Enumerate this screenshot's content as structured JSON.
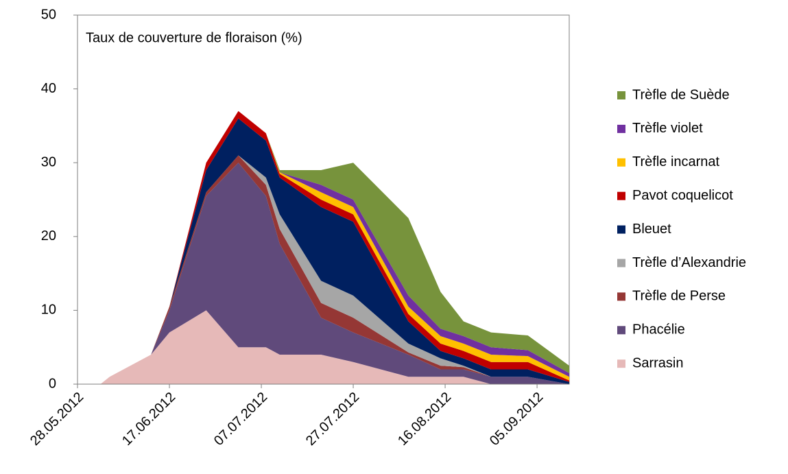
{
  "chart_data": {
    "type": "stacked-area",
    "title": "Taux de couverture de floraison (%)",
    "x": [
      "2012-06-02",
      "2012-06-04",
      "2012-06-07",
      "2012-06-13",
      "2012-06-17",
      "2012-06-25",
      "2012-07-02",
      "2012-07-08",
      "2012-07-11",
      "2012-07-20",
      "2012-07-27",
      "2012-08-08",
      "2012-08-15",
      "2012-08-20",
      "2012-08-26",
      "2012-09-03",
      "2012-09-12"
    ],
    "xlim": [
      "2012-05-28",
      "2012-09-12"
    ],
    "xticks": [
      {
        "value": "2012-05-28",
        "label": "28.05.2012"
      },
      {
        "value": "2012-06-17",
        "label": "17.06.2012"
      },
      {
        "value": "2012-07-07",
        "label": "07.07.2012"
      },
      {
        "value": "2012-07-27",
        "label": "27.07.2012"
      },
      {
        "value": "2012-08-16",
        "label": "16.08.2012"
      },
      {
        "value": "2012-09-05",
        "label": "05.09.2012"
      }
    ],
    "ylim": [
      0,
      50
    ],
    "yticks": [
      0,
      10,
      20,
      30,
      40,
      50
    ],
    "series": [
      {
        "name": "Sarrasin",
        "color": "#e6b9b8",
        "values": [
          0,
          1,
          2,
          4,
          7,
          10,
          5,
          5,
          4,
          4,
          3,
          1,
          1,
          1,
          0,
          0,
          0
        ]
      },
      {
        "name": "Phacélie",
        "color": "#604a7b",
        "values": [
          0,
          0,
          0,
          0,
          3,
          15.5,
          25,
          20.5,
          15,
          5,
          4,
          3,
          1,
          1,
          1,
          1,
          0
        ]
      },
      {
        "name": "Trèfle de Perse",
        "color": "#953735",
        "values": [
          0,
          0,
          0,
          0,
          0.5,
          0.5,
          1,
          1.5,
          2,
          2,
          2,
          0.3,
          0.5,
          0.3,
          0,
          0,
          0
        ]
      },
      {
        "name": "Trèfle d’Alexandrie",
        "color": "#a6a6a6",
        "values": [
          0,
          0,
          0,
          0,
          0,
          0,
          0,
          1,
          2,
          3,
          3,
          1.2,
          1,
          0.2,
          0,
          0,
          0
        ]
      },
      {
        "name": "Bleuet",
        "color": "#002060",
        "values": [
          0,
          0,
          0,
          0,
          0,
          3,
          5,
          5,
          5,
          10,
          10,
          3,
          1,
          1,
          1,
          1,
          0.3
        ]
      },
      {
        "name": "Pavot coquelicot",
        "color": "#c00000",
        "values": [
          0,
          0,
          0,
          0,
          0,
          1,
          1,
          1,
          0.5,
          1,
          1,
          1,
          1,
          1,
          1,
          1,
          0.2
        ]
      },
      {
        "name": "Trèfle incarnat",
        "color": "#ffc000",
        "values": [
          0,
          0,
          0,
          0,
          0,
          0,
          0,
          0,
          0.2,
          1,
          1,
          1,
          1,
          1,
          1,
          0.8,
          0.5
        ]
      },
      {
        "name": "Trèfle violet",
        "color": "#7030a0",
        "values": [
          0,
          0,
          0,
          0,
          0,
          0,
          0,
          0,
          0,
          1,
          1,
          1.5,
          1,
          1,
          1,
          0.8,
          0.5
        ]
      },
      {
        "name": "Trèfle de Suède",
        "color": "#77933c",
        "values": [
          0,
          0,
          0,
          0,
          0,
          0,
          0,
          0,
          0.3,
          2,
          5,
          10.5,
          5,
          2,
          2,
          2,
          1
        ]
      }
    ]
  }
}
